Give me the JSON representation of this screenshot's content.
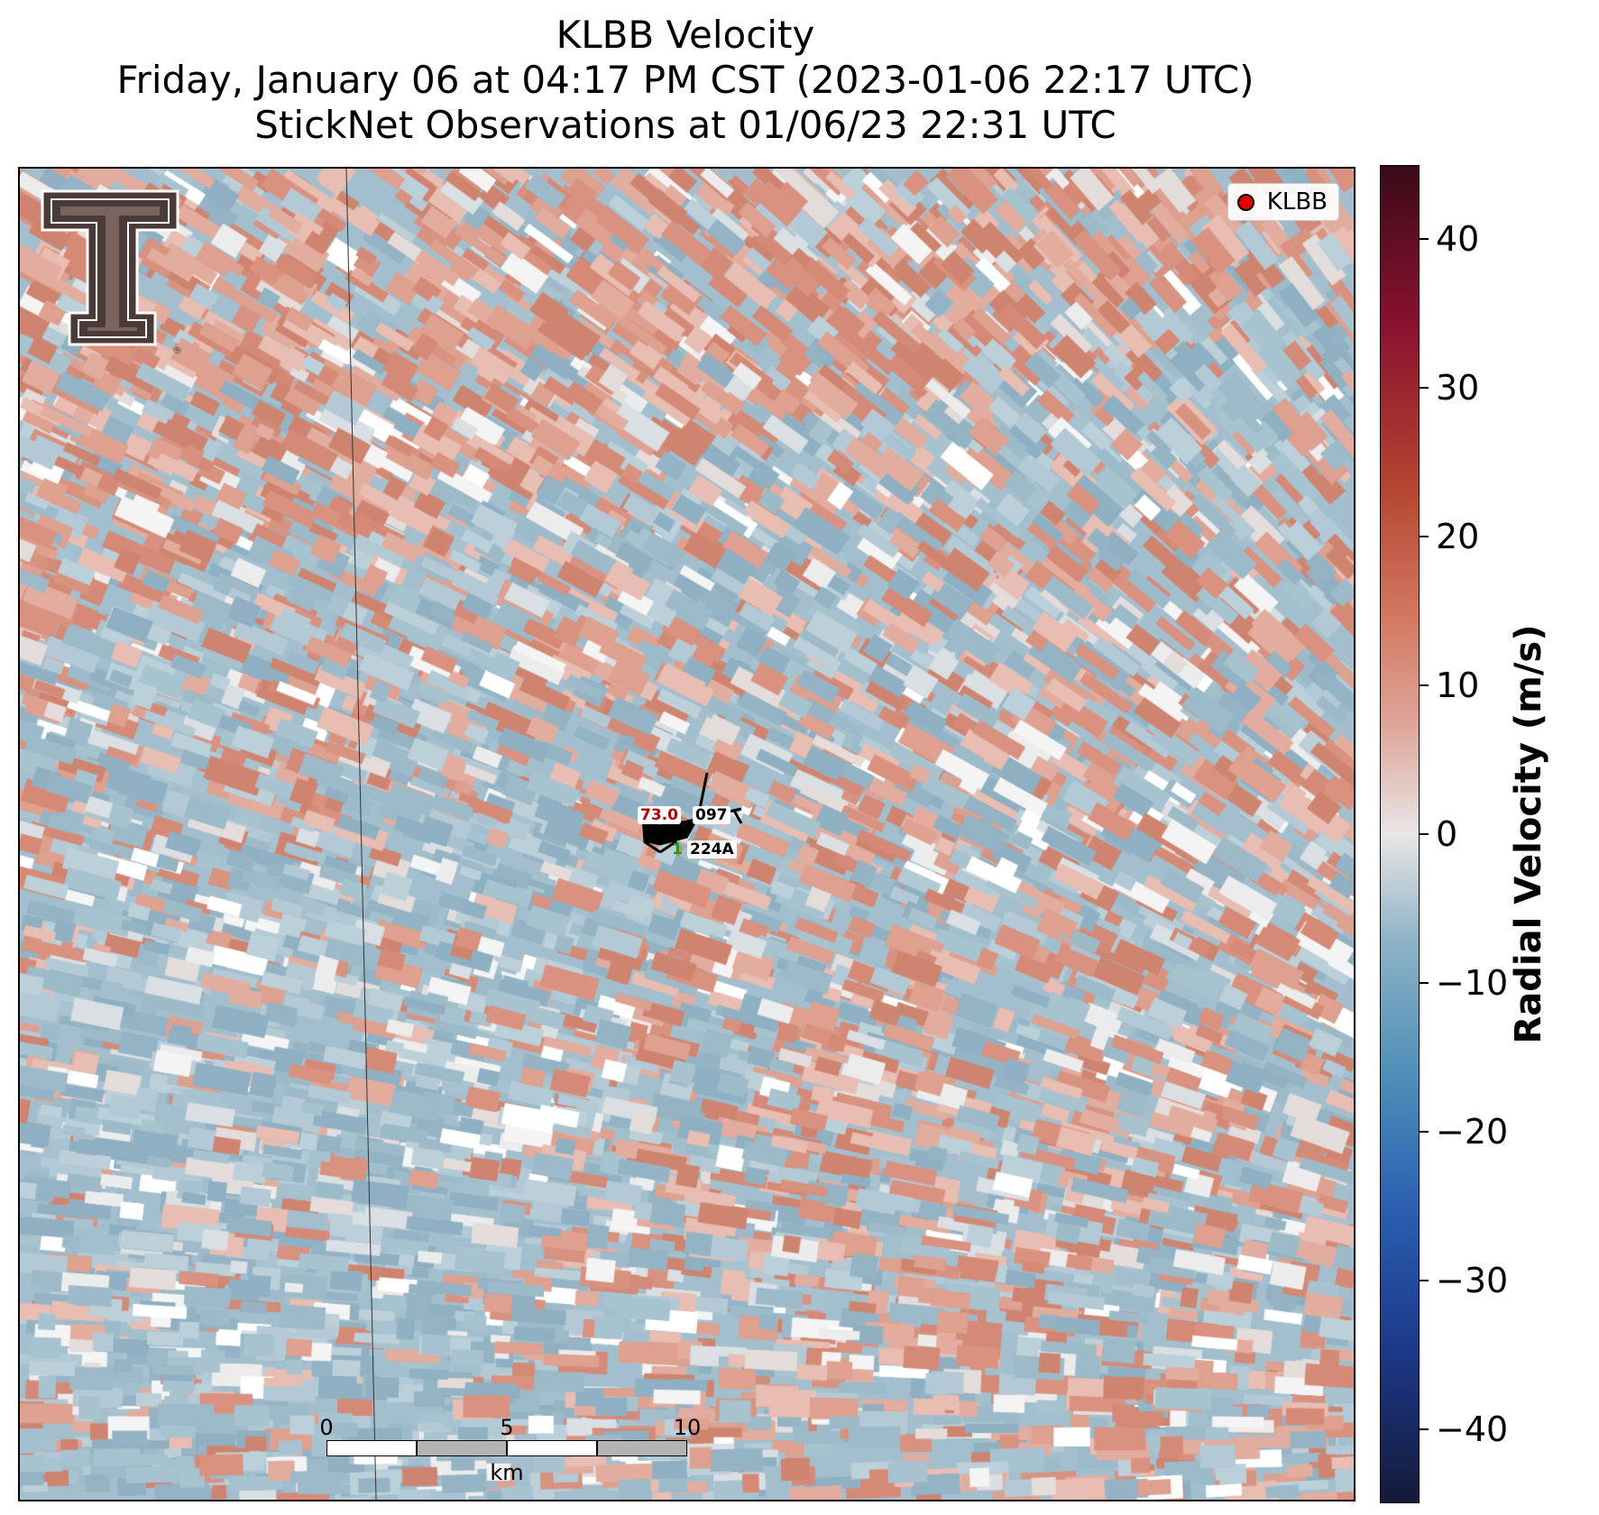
{
  "title": {
    "line1": "KLBB Velocity",
    "line2": "Friday, January 06 at 04:17 PM CST (2023-01-06 22:17 UTC)",
    "line3": "StickNet Observations at 01/06/23 22:31 UTC"
  },
  "legend": {
    "label": "KLBB",
    "marker_color": "#e00000"
  },
  "station": {
    "temperature": "73.0",
    "direction": "097",
    "small_value": "1",
    "id": "224A",
    "temperature_color": "#b30000"
  },
  "scalebar": {
    "ticks": [
      "0",
      "5",
      "10"
    ],
    "unit": "km"
  },
  "colorbar": {
    "title": "Radial Velocity (m/s)",
    "range": [
      -45,
      45
    ],
    "tick_labels": [
      "40",
      "30",
      "20",
      "10",
      "0",
      "−10",
      "−20",
      "−30",
      "−40"
    ],
    "tick_values": [
      40,
      30,
      20,
      10,
      0,
      -10,
      -20,
      -30,
      -40
    ]
  },
  "colors": {
    "inbound": "#8fb2c4",
    "outbound": "#d99280",
    "neutral": "#f3f3f3"
  },
  "icons": {
    "logo": "double-t-logo-icon",
    "station": "wind-barb-icon"
  }
}
